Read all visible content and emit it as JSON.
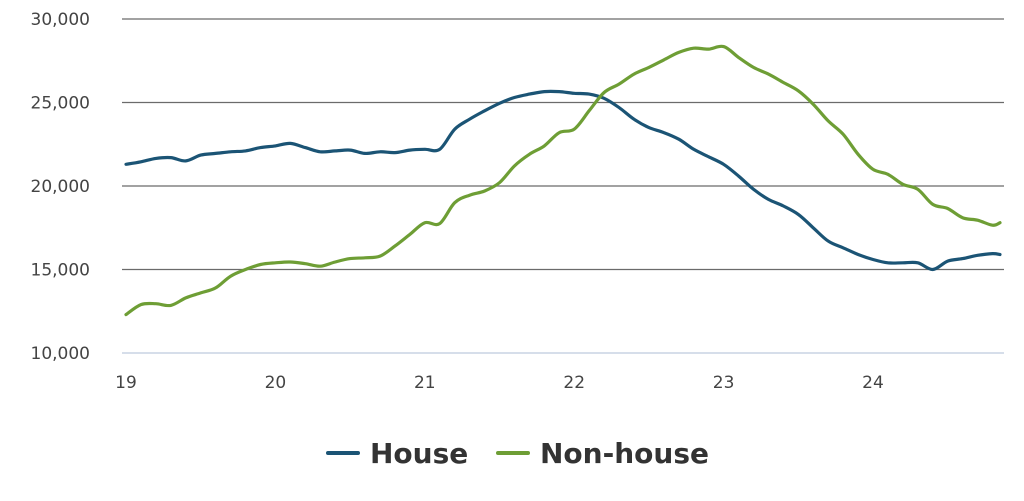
{
  "chart_data": {
    "type": "line",
    "xlabel": "",
    "ylabel": "",
    "xlim": [
      19,
      24.85
    ],
    "ylim": [
      10000,
      30000
    ],
    "y_ticks": [
      {
        "value": 10000,
        "label": "10,000"
      },
      {
        "value": 15000,
        "label": "15,000"
      },
      {
        "value": 20000,
        "label": "20,000"
      },
      {
        "value": 25000,
        "label": "25,000"
      },
      {
        "value": 30000,
        "label": "30,000"
      }
    ],
    "x_ticks": [
      {
        "value": 19,
        "label": "19"
      },
      {
        "value": 20,
        "label": "20"
      },
      {
        "value": 21,
        "label": "21"
      },
      {
        "value": 22,
        "label": "22"
      },
      {
        "value": 23,
        "label": "23"
      },
      {
        "value": 24,
        "label": "24"
      }
    ],
    "grid": "horizontal",
    "legend_position": "bottom",
    "series": [
      {
        "name": "House",
        "color": "#1b5475",
        "points": [
          [
            19.0,
            21300
          ],
          [
            19.1,
            21450
          ],
          [
            19.2,
            21650
          ],
          [
            19.3,
            21700
          ],
          [
            19.4,
            21500
          ],
          [
            19.5,
            21850
          ],
          [
            19.6,
            21950
          ],
          [
            19.7,
            22050
          ],
          [
            19.8,
            22100
          ],
          [
            19.9,
            22300
          ],
          [
            20.0,
            22400
          ],
          [
            20.1,
            22550
          ],
          [
            20.2,
            22300
          ],
          [
            20.3,
            22050
          ],
          [
            20.4,
            22100
          ],
          [
            20.5,
            22150
          ],
          [
            20.6,
            21950
          ],
          [
            20.7,
            22050
          ],
          [
            20.8,
            22000
          ],
          [
            20.9,
            22150
          ],
          [
            21.0,
            22200
          ],
          [
            21.1,
            22200
          ],
          [
            21.2,
            23400
          ],
          [
            21.3,
            24000
          ],
          [
            21.4,
            24500
          ],
          [
            21.5,
            24950
          ],
          [
            21.6,
            25300
          ],
          [
            21.7,
            25500
          ],
          [
            21.8,
            25650
          ],
          [
            21.9,
            25650
          ],
          [
            22.0,
            25550
          ],
          [
            22.1,
            25500
          ],
          [
            22.2,
            25250
          ],
          [
            22.3,
            24700
          ],
          [
            22.4,
            24000
          ],
          [
            22.5,
            23500
          ],
          [
            22.6,
            23200
          ],
          [
            22.7,
            22800
          ],
          [
            22.8,
            22200
          ],
          [
            22.9,
            21750
          ],
          [
            23.0,
            21300
          ],
          [
            23.1,
            20600
          ],
          [
            23.2,
            19800
          ],
          [
            23.3,
            19200
          ],
          [
            23.4,
            18800
          ],
          [
            23.5,
            18300
          ],
          [
            23.6,
            17500
          ],
          [
            23.7,
            16700
          ],
          [
            23.8,
            16300
          ],
          [
            23.9,
            15900
          ],
          [
            24.0,
            15600
          ],
          [
            24.1,
            15400
          ],
          [
            24.2,
            15400
          ],
          [
            24.3,
            15400
          ],
          [
            24.4,
            15000
          ],
          [
            24.5,
            15500
          ],
          [
            24.6,
            15650
          ],
          [
            24.7,
            15850
          ],
          [
            24.8,
            15950
          ],
          [
            24.85,
            15900
          ]
        ]
      },
      {
        "name": "Non-house",
        "color": "#6e9e35",
        "points": [
          [
            19.0,
            12300
          ],
          [
            19.1,
            12900
          ],
          [
            19.2,
            12950
          ],
          [
            19.3,
            12850
          ],
          [
            19.4,
            13300
          ],
          [
            19.5,
            13600
          ],
          [
            19.6,
            13900
          ],
          [
            19.7,
            14600
          ],
          [
            19.8,
            15000
          ],
          [
            19.9,
            15300
          ],
          [
            20.0,
            15400
          ],
          [
            20.1,
            15450
          ],
          [
            20.2,
            15350
          ],
          [
            20.3,
            15200
          ],
          [
            20.4,
            15450
          ],
          [
            20.5,
            15650
          ],
          [
            20.6,
            15700
          ],
          [
            20.7,
            15800
          ],
          [
            20.8,
            16400
          ],
          [
            20.9,
            17100
          ],
          [
            21.0,
            17800
          ],
          [
            21.1,
            17750
          ],
          [
            21.2,
            19000
          ],
          [
            21.3,
            19450
          ],
          [
            21.4,
            19700
          ],
          [
            21.5,
            20200
          ],
          [
            21.6,
            21200
          ],
          [
            21.7,
            21900
          ],
          [
            21.8,
            22400
          ],
          [
            21.9,
            23200
          ],
          [
            22.0,
            23400
          ],
          [
            22.1,
            24500
          ],
          [
            22.2,
            25600
          ],
          [
            22.3,
            26100
          ],
          [
            22.4,
            26700
          ],
          [
            22.5,
            27100
          ],
          [
            22.6,
            27550
          ],
          [
            22.7,
            28000
          ],
          [
            22.8,
            28250
          ],
          [
            22.9,
            28200
          ],
          [
            23.0,
            28350
          ],
          [
            23.1,
            27700
          ],
          [
            23.2,
            27100
          ],
          [
            23.3,
            26700
          ],
          [
            23.4,
            26200
          ],
          [
            23.5,
            25700
          ],
          [
            23.6,
            24900
          ],
          [
            23.7,
            23900
          ],
          [
            23.8,
            23100
          ],
          [
            23.9,
            21900
          ],
          [
            24.0,
            21000
          ],
          [
            24.1,
            20700
          ],
          [
            24.2,
            20100
          ],
          [
            24.3,
            19800
          ],
          [
            24.4,
            18900
          ],
          [
            24.5,
            18650
          ],
          [
            24.6,
            18100
          ],
          [
            24.7,
            17950
          ],
          [
            24.8,
            17650
          ],
          [
            24.85,
            17800
          ]
        ]
      }
    ]
  }
}
